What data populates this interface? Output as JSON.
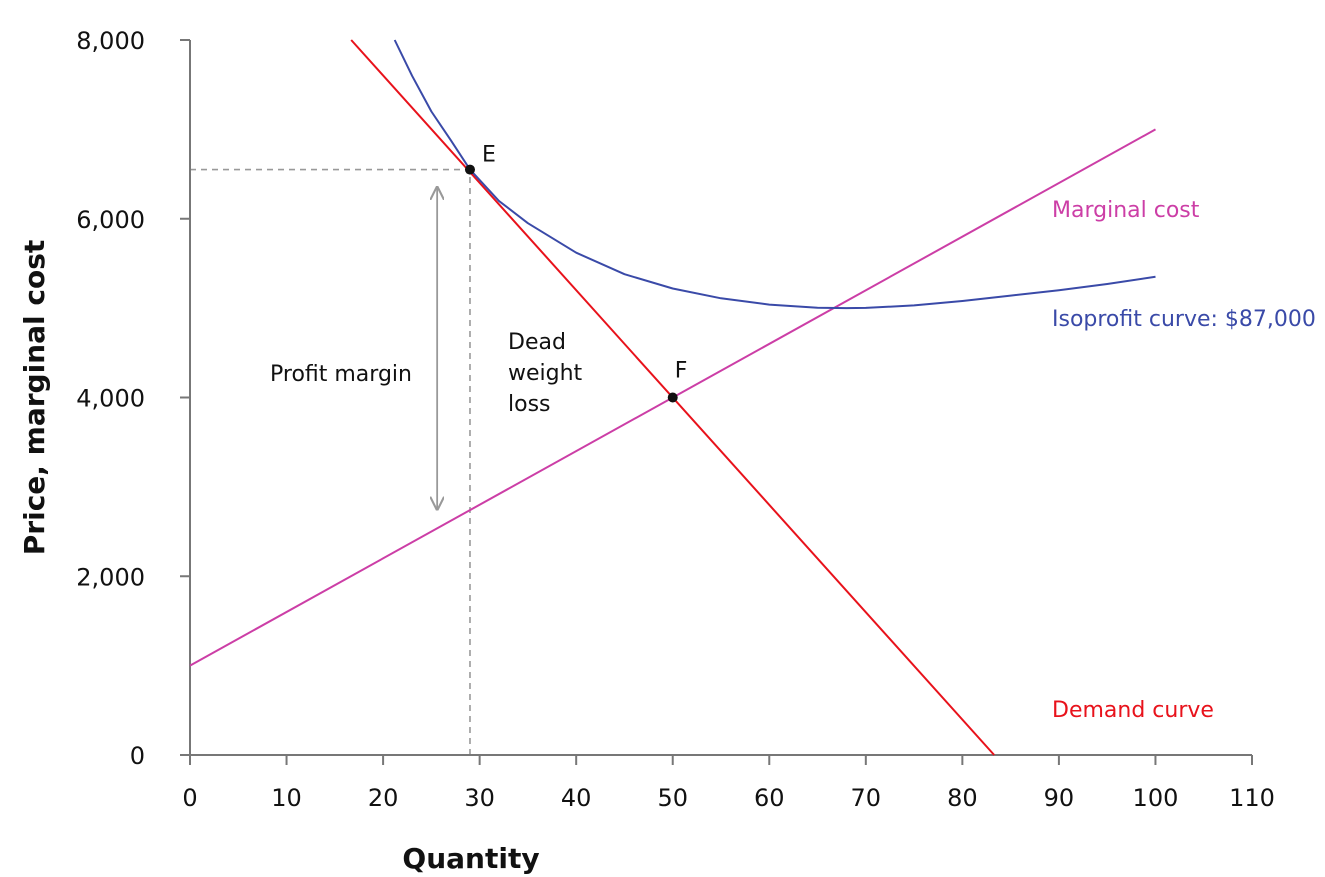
{
  "chart_data": {
    "type": "line",
    "title": "",
    "xlabel": "Quantity",
    "ylabel": "Price, marginal cost",
    "xlim": [
      0,
      110
    ],
    "ylim": [
      0,
      8000
    ],
    "x_ticks": [
      0,
      10,
      20,
      30,
      40,
      50,
      60,
      70,
      80,
      90,
      100,
      110
    ],
    "y_ticks": [
      0,
      2000,
      4000,
      6000,
      8000
    ],
    "x_tick_labels": [
      "0",
      "10",
      "20",
      "30",
      "40",
      "50",
      "60",
      "70",
      "80",
      "90",
      "100",
      "110"
    ],
    "y_tick_labels": [
      "0",
      "2,000",
      "4,000",
      "6,000",
      "8,000"
    ],
    "grid": false,
    "series": [
      {
        "name": "Demand curve",
        "color": "#e8121b",
        "points": [
          [
            16.7,
            8000
          ],
          [
            83.3,
            0
          ]
        ]
      },
      {
        "name": "Marginal cost",
        "color": "#cc3ea6",
        "points": [
          [
            0,
            1000
          ],
          [
            100,
            7000
          ]
        ]
      },
      {
        "name": "Isoprofit curve: $87,000",
        "color": "#3a4aa8",
        "points": [
          [
            21.2,
            8000
          ],
          [
            23,
            7600
          ],
          [
            25,
            7200
          ],
          [
            27,
            6880
          ],
          [
            29,
            6550
          ],
          [
            32,
            6200
          ],
          [
            35,
            5950
          ],
          [
            40,
            5620
          ],
          [
            45,
            5380
          ],
          [
            50,
            5220
          ],
          [
            55,
            5110
          ],
          [
            60,
            5040
          ],
          [
            65,
            5005
          ],
          [
            68,
            5000
          ],
          [
            70,
            5002
          ],
          [
            75,
            5030
          ],
          [
            80,
            5080
          ],
          [
            85,
            5140
          ],
          [
            90,
            5200
          ],
          [
            95,
            5270
          ],
          [
            100,
            5350
          ]
        ]
      }
    ],
    "points": [
      {
        "label": "E",
        "x": 29,
        "y": 6550
      },
      {
        "label": "F",
        "x": 50,
        "y": 4000
      }
    ],
    "reference_lines": {
      "horizontal": {
        "y": 6550,
        "x_from": 0,
        "x_to": 29
      },
      "vertical": {
        "x": 29,
        "y_from": 0,
        "y_to": 6550
      }
    },
    "arrow": {
      "x": 25.6,
      "y_from": 6350,
      "y_to": 2750
    },
    "annotations": {
      "profit_margin": "Profit margin",
      "dead_weight_loss": [
        "Dead",
        "weight",
        "loss"
      ]
    }
  }
}
